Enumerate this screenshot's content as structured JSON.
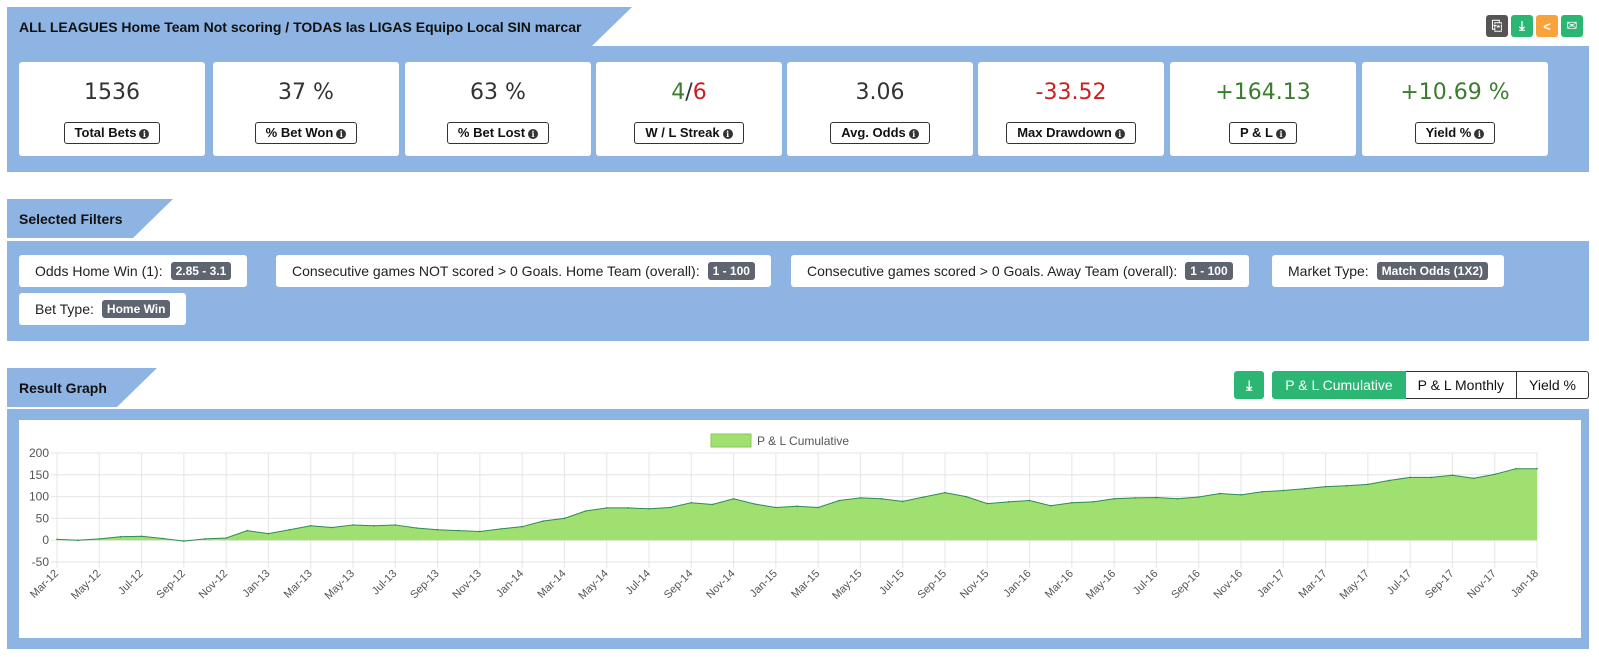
{
  "header": {
    "title": "ALL LEAGUES Home Team Not scoring / TODAS las LIGAS Equipo Local SIN marcar",
    "icons": [
      "copy-icon",
      "download-icon",
      "share-icon",
      "email-icon"
    ],
    "icon_colors": [
      "#555555",
      "#2bb673",
      "#f7a23b",
      "#2bb673"
    ]
  },
  "stats": [
    {
      "value": "1536",
      "label": "Total Bets",
      "color": "#333333"
    },
    {
      "value": "37 %",
      "label": "% Bet Won",
      "color": "#333333"
    },
    {
      "value": "63 %",
      "label": "% Bet Lost",
      "color": "#333333"
    },
    {
      "value_win": "4",
      "value_sep": "/",
      "value_loss": "6",
      "label": "W / L Streak"
    },
    {
      "value": "3.06",
      "label": "Avg. Odds",
      "color": "#333333"
    },
    {
      "value": "-33.52",
      "label": "Max Drawdown",
      "color": "#cc1f1f"
    },
    {
      "value": "+164.13",
      "label": "P & L",
      "color": "#3a7d2c"
    },
    {
      "value": "+10.69 %",
      "label": "Yield %",
      "color": "#3a7d2c"
    }
  ],
  "filters": {
    "title": "Selected Filters",
    "items": [
      {
        "label": "Odds Home Win (1):",
        "value": "2.85 - 3.1"
      },
      {
        "label": "Consecutive games NOT scored > 0 Goals. Home Team (overall):",
        "value": "1 - 100"
      },
      {
        "label": "Consecutive games scored > 0 Goals. Away Team (overall):",
        "value": "1 - 100"
      },
      {
        "label": "Market Type:",
        "value": "Match Odds (1X2)"
      },
      {
        "label": "Bet Type:",
        "value": "Home Win"
      }
    ]
  },
  "graph": {
    "title": "Result Graph",
    "download_icon": "download-icon",
    "tabs": [
      "P & L Cumulative",
      "P & L Monthly",
      "Yield %"
    ],
    "active_tab": "P & L Cumulative"
  },
  "chart_data": {
    "type": "area",
    "legend": [
      "P & L Cumulative"
    ],
    "legend_position": "top-center",
    "fill_color": "#9fe070",
    "line_color": "#2e8b57",
    "grid": true,
    "ylim": [
      -50,
      200
    ],
    "yticks": [
      -50,
      0,
      50,
      100,
      150,
      200
    ],
    "x": [
      "Mar-12",
      "Apr-12",
      "May-12",
      "Jun-12",
      "Jul-12",
      "Aug-12",
      "Sep-12",
      "Oct-12",
      "Nov-12",
      "Dec-12",
      "Jan-13",
      "Feb-13",
      "Mar-13",
      "Apr-13",
      "May-13",
      "Jun-13",
      "Jul-13",
      "Aug-13",
      "Sep-13",
      "Oct-13",
      "Nov-13",
      "Dec-13",
      "Jan-14",
      "Feb-14",
      "Mar-14",
      "Apr-14",
      "May-14",
      "Jun-14",
      "Jul-14",
      "Aug-14",
      "Sep-14",
      "Oct-14",
      "Nov-14",
      "Dec-14",
      "Jan-15",
      "Feb-15",
      "Mar-15",
      "Apr-15",
      "May-15",
      "Jun-15",
      "Jul-15",
      "Aug-15",
      "Sep-15",
      "Oct-15",
      "Nov-15",
      "Dec-15",
      "Jan-16",
      "Feb-16",
      "Mar-16",
      "Apr-16",
      "May-16",
      "Jun-16",
      "Jul-16",
      "Aug-16",
      "Sep-16",
      "Oct-16",
      "Nov-16",
      "Dec-16",
      "Jan-17",
      "Feb-17",
      "Mar-17",
      "Apr-17",
      "May-17",
      "Jun-17",
      "Jul-17",
      "Aug-17",
      "Sep-17",
      "Oct-17",
      "Nov-17",
      "Dec-17",
      "Jan-18"
    ],
    "tick_labels": [
      "Mar-12",
      "May-12",
      "Jul-12",
      "Sep-12",
      "Nov-12",
      "Jan-13",
      "Mar-13",
      "May-13",
      "Jul-13",
      "Sep-13",
      "Nov-13",
      "Jan-14",
      "Mar-14",
      "May-14",
      "Jul-14",
      "Sep-14",
      "Nov-14",
      "Jan-15",
      "Mar-15",
      "May-15",
      "Jul-15",
      "Sep-15",
      "Nov-15",
      "Jan-16",
      "Mar-16",
      "May-16",
      "Jul-16",
      "Sep-16",
      "Nov-16",
      "Jan-17",
      "Mar-17",
      "May-17",
      "Jul-17",
      "Sep-17",
      "Nov-17",
      "Jan-18"
    ],
    "values": [
      2,
      0,
      3,
      8,
      9,
      4,
      -2,
      3,
      5,
      22,
      15,
      24,
      33,
      29,
      35,
      33,
      35,
      28,
      24,
      22,
      20,
      26,
      31,
      44,
      50,
      67,
      74,
      74,
      72,
      75,
      86,
      82,
      95,
      83,
      75,
      78,
      75,
      91,
      97,
      95,
      89,
      99,
      109,
      100,
      84,
      88,
      91,
      79,
      86,
      88,
      95,
      97,
      98,
      95,
      99,
      107,
      104,
      111,
      114,
      118,
      123,
      125,
      128,
      137,
      144,
      144,
      149,
      142,
      151,
      164,
      164
    ]
  }
}
